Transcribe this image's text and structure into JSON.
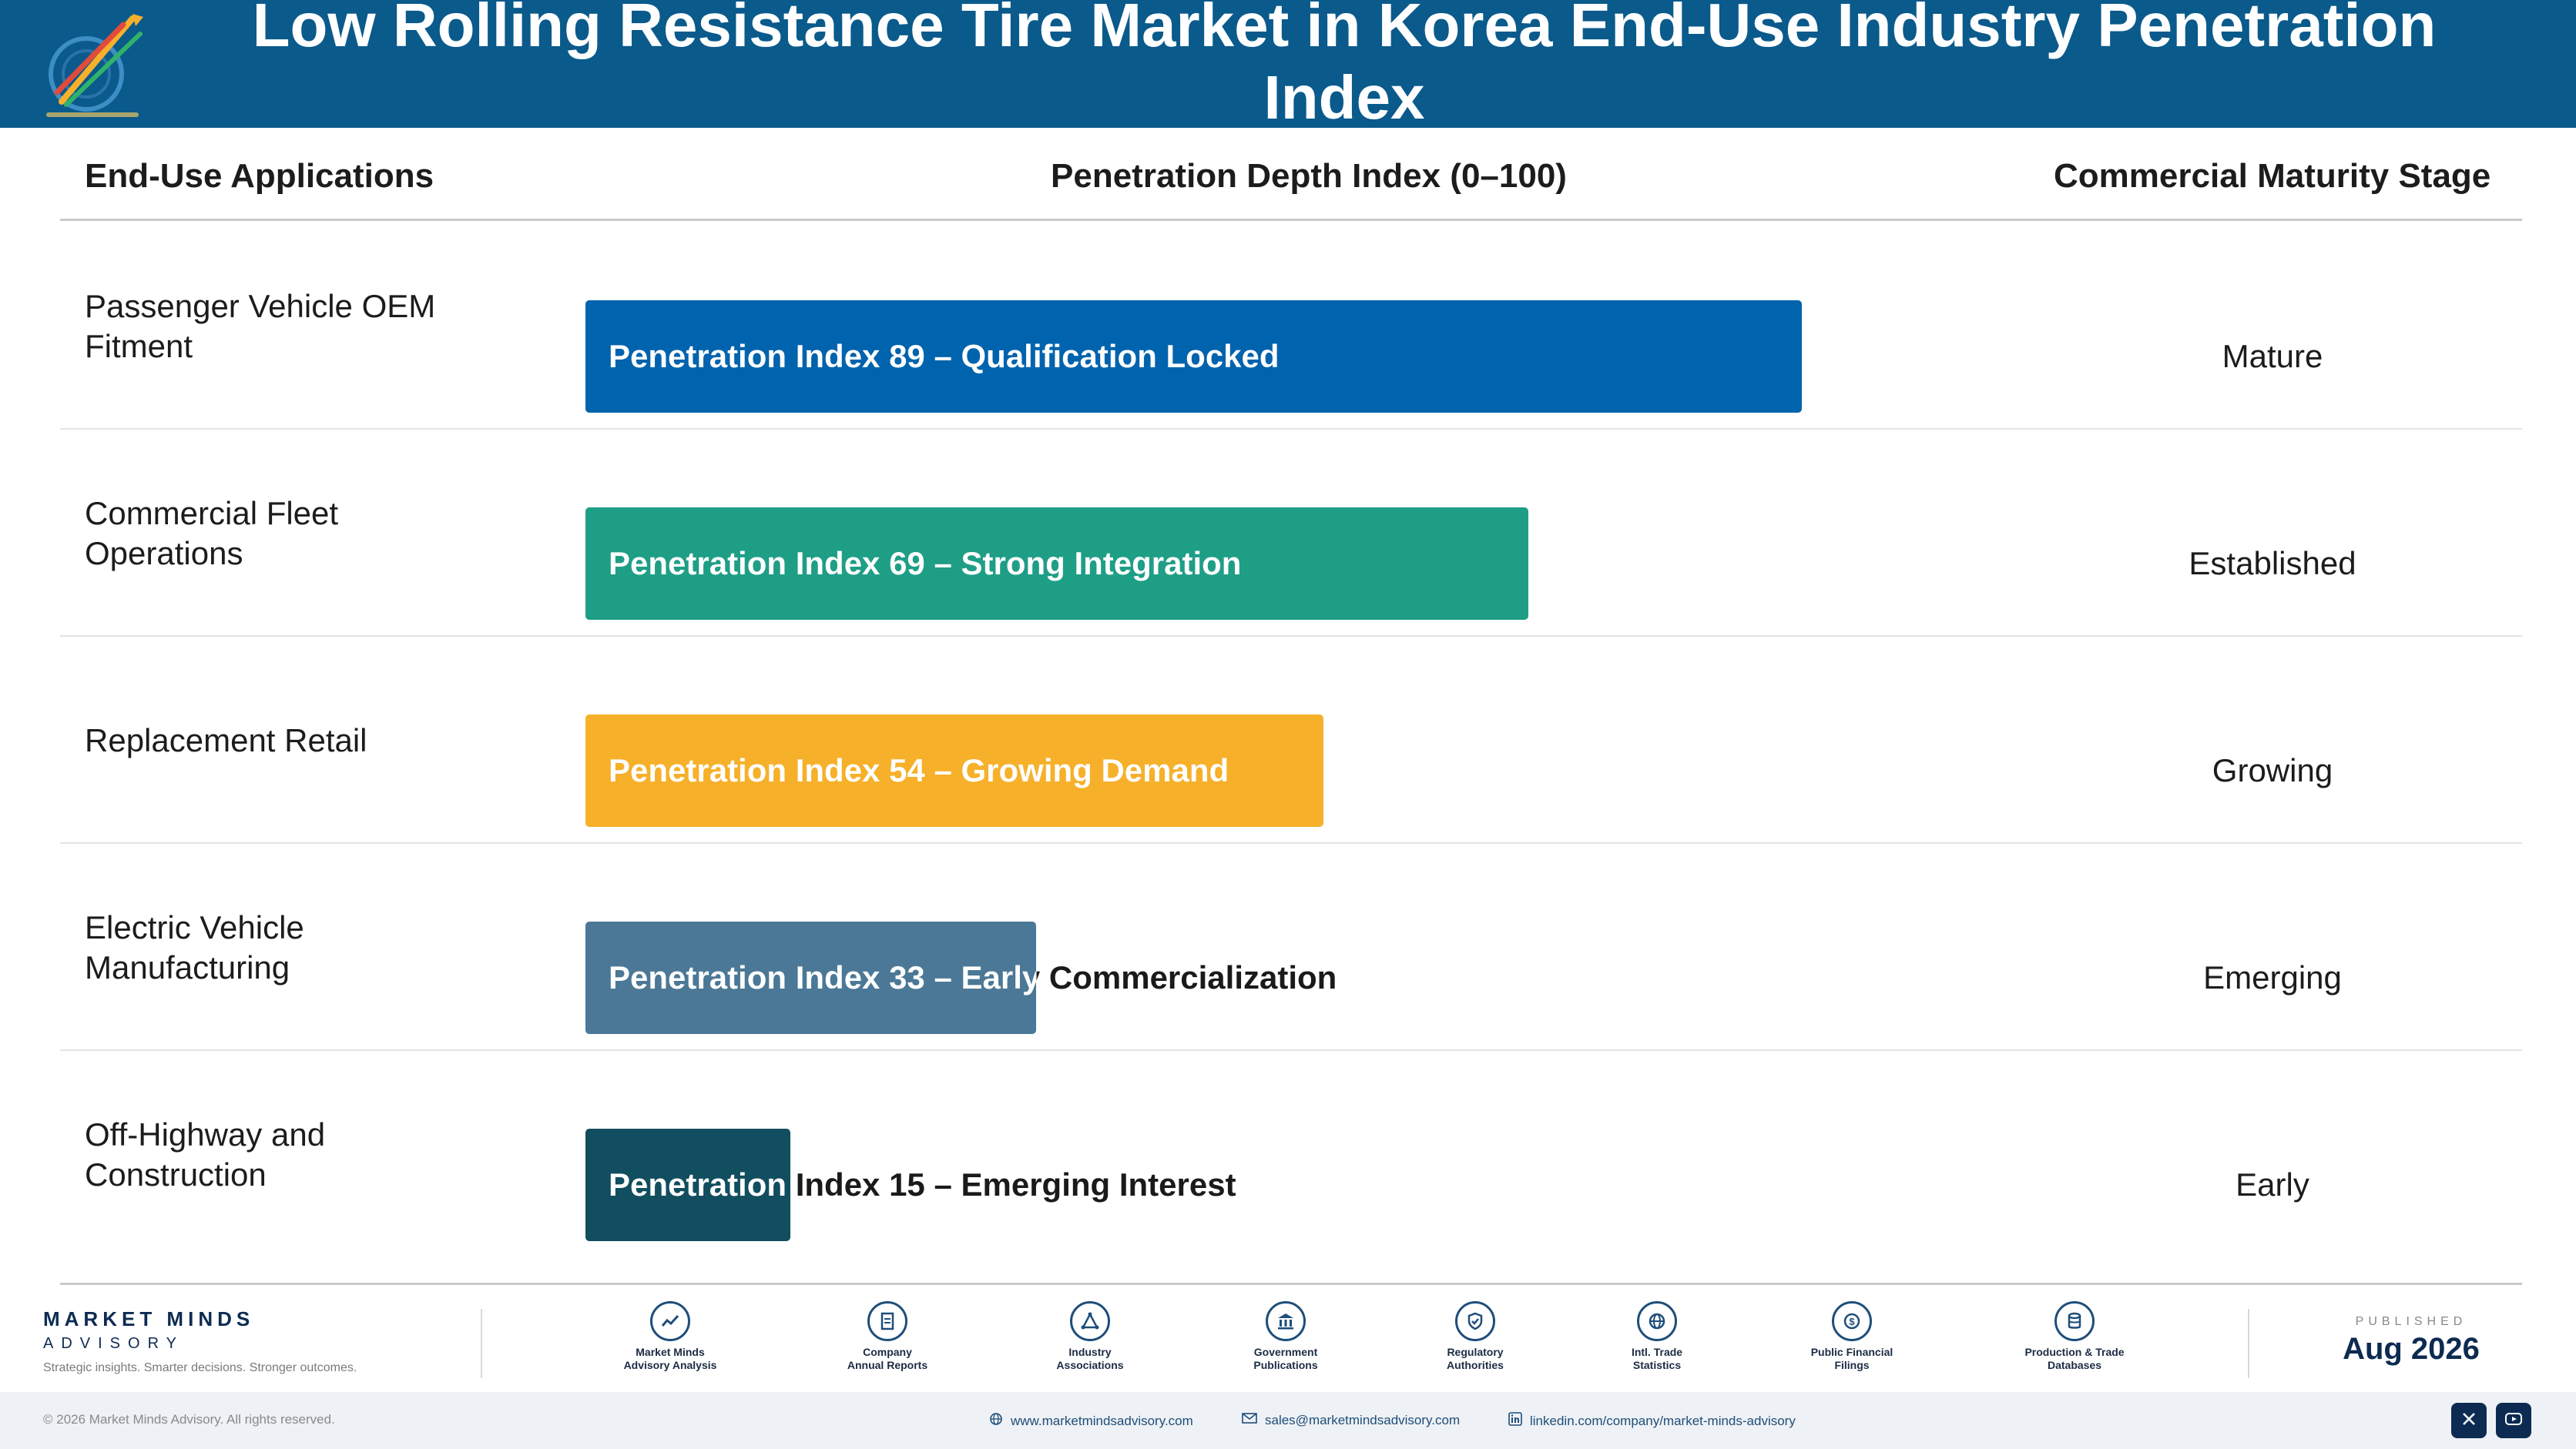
{
  "header": {
    "title": "Low Rolling Resistance Tire Market in Korea End-Use Industry Penetration Index"
  },
  "columns": {
    "applications": "End-Use Applications",
    "depth": "Penetration Depth Index (0–100)",
    "stage": "Commercial Maturity Stage"
  },
  "chart_data": {
    "type": "bar",
    "orientation": "horizontal",
    "xlim": [
      0,
      100
    ],
    "categories": [
      "Passenger Vehicle OEM Fitment",
      "Commercial Fleet Operations",
      "Replacement Retail",
      "Electric Vehicle Manufacturing",
      "Off-Highway and Construction"
    ],
    "values": [
      89,
      69,
      54,
      33,
      15
    ],
    "bar_labels": [
      "Penetration Index 89 – Qualification Locked",
      "Penetration Index 69 – Strong Integration",
      "Penetration Index 54 – Growing Demand",
      "Penetration Index 33 – Early Commercialization",
      "Penetration Index 15 – Emerging Interest"
    ],
    "stages": [
      "Mature",
      "Established",
      "Growing",
      "Emerging",
      "Early"
    ],
    "colors": [
      "#0063ad",
      "#1f9e86",
      "#f6b02a",
      "#4b7896",
      "#114e5f"
    ]
  },
  "footer": {
    "brand_name": "MARKET MINDS",
    "brand_sub": "ADVISORY",
    "tagline": "Strategic insights. Smarter decisions. Stronger outcomes.",
    "sources": [
      {
        "icon": "trend-chart-icon",
        "label_1": "Market Minds",
        "label_2": "Advisory Analysis"
      },
      {
        "icon": "document-icon",
        "label_1": "Company",
        "label_2": "Annual Reports"
      },
      {
        "icon": "network-icon",
        "label_1": "Industry",
        "label_2": "Associations"
      },
      {
        "icon": "government-building-icon",
        "label_1": "Government",
        "label_2": "Publications"
      },
      {
        "icon": "shield-check-icon",
        "label_1": "Regulatory",
        "label_2": "Authorities"
      },
      {
        "icon": "globe-icon",
        "label_1": "Intl. Trade",
        "label_2": "Statistics"
      },
      {
        "icon": "dollar-coin-icon",
        "label_1": "Public Financial",
        "label_2": "Filings"
      },
      {
        "icon": "database-icon",
        "label_1": "Production & Trade",
        "label_2": "Databases"
      }
    ],
    "published_label": "PUBLISHED",
    "published_date": "Aug 2026",
    "copyright": "© 2026 Market Minds Advisory. All rights reserved.",
    "website": "www.marketmindsadvisory.com",
    "email": "sales@marketmindsadvisory.com",
    "linkedin": "linkedin.com/company/market-minds-advisory"
  }
}
